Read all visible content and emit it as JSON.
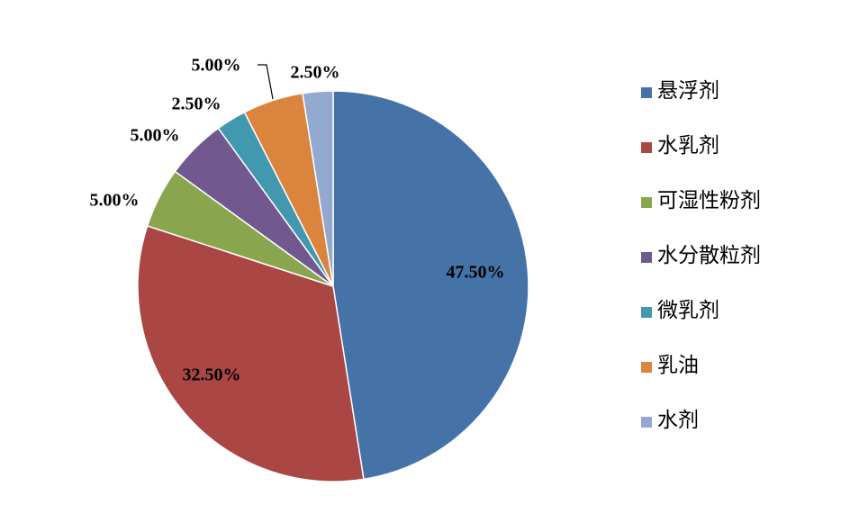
{
  "chart_data": {
    "type": "pie",
    "title": "",
    "categories": [
      "悬浮剂",
      "水乳剂",
      "可湿性粉剂",
      "水分散粒剂",
      "微乳剂",
      "乳油",
      "水剂"
    ],
    "values": [
      47.5,
      32.5,
      5.0,
      5.0,
      2.5,
      5.0,
      2.5
    ],
    "value_labels": [
      "47.50%",
      "32.50%",
      "5.00%",
      "5.00%",
      "2.50%",
      "5.00%",
      "2.50%"
    ],
    "colors": [
      "#4572A7",
      "#AA4643",
      "#89A54E",
      "#71588F",
      "#4198AF",
      "#DB843D",
      "#93A9CF"
    ],
    "legend_position": "right",
    "start_angle": "12 o'clock, clockwise"
  }
}
